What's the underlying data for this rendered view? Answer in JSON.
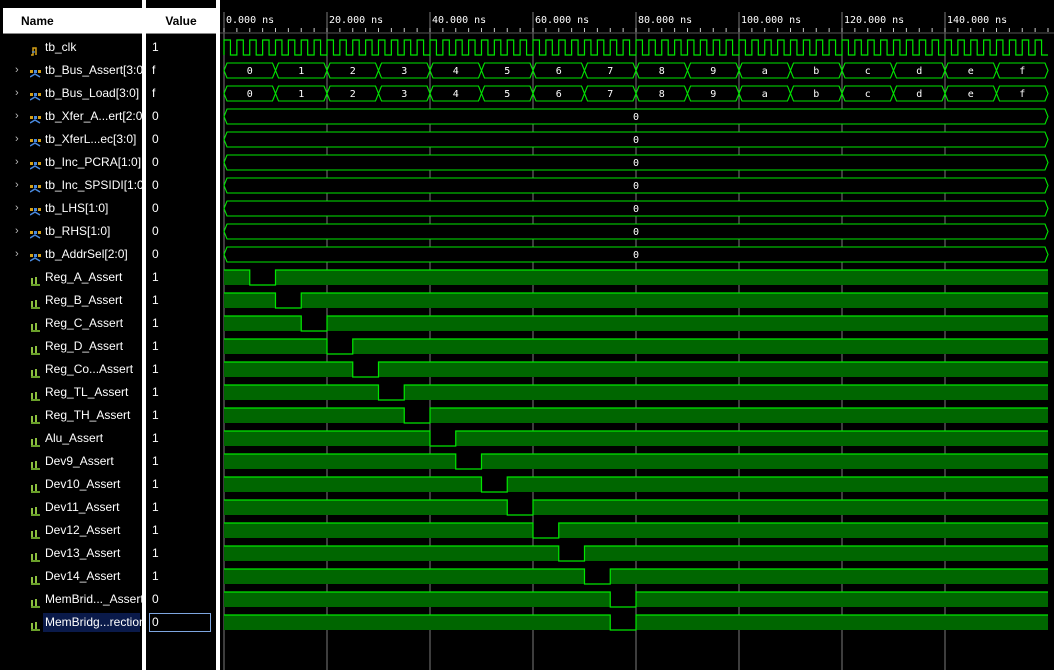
{
  "headers": {
    "name": "Name",
    "value": "Value"
  },
  "time_axis": {
    "labels": [
      "0.000 ns",
      "20.000 ns",
      "40.000 ns",
      "60.000 ns",
      "80.000 ns",
      "100.000 ns",
      "120.000 ns",
      "140.000 ns"
    ],
    "end_ns": 160,
    "clock_period_ns": 2.5
  },
  "colors": {
    "wave": "#00e600",
    "fill": "#006600",
    "bus_bg": "#000000",
    "grid": "#7a7a7a",
    "text": "#ffffff"
  },
  "signals": [
    {
      "name": "tb_clk",
      "value": "1",
      "kind": "clock",
      "expandable": false,
      "icon": "clock-signal-icon"
    },
    {
      "name": "tb_Bus_Assert[3:0]",
      "value": "f",
      "kind": "bus",
      "expandable": true,
      "icon": "bus-signal-icon",
      "segments": [
        "0",
        "1",
        "2",
        "3",
        "4",
        "5",
        "6",
        "7",
        "8",
        "9",
        "a",
        "b",
        "c",
        "d",
        "e",
        "f"
      ]
    },
    {
      "name": "tb_Bus_Load[3:0]",
      "value": "f",
      "kind": "bus",
      "expandable": true,
      "icon": "bus-signal-icon",
      "segments": [
        "0",
        "1",
        "2",
        "3",
        "4",
        "5",
        "6",
        "7",
        "8",
        "9",
        "a",
        "b",
        "c",
        "d",
        "e",
        "f"
      ]
    },
    {
      "name": "tb_Xfer_A...ert[2:0]",
      "value": "0",
      "kind": "bus",
      "expandable": true,
      "icon": "bus-signal-icon",
      "segments": [
        "0"
      ]
    },
    {
      "name": "tb_XferL...ec[3:0]",
      "value": "0",
      "kind": "bus",
      "expandable": true,
      "icon": "bus-signal-icon",
      "segments": [
        "0"
      ]
    },
    {
      "name": "tb_Inc_PCRA[1:0]",
      "value": "0",
      "kind": "bus",
      "expandable": true,
      "icon": "bus-signal-icon",
      "segments": [
        "0"
      ]
    },
    {
      "name": "tb_Inc_SPSIDI[1:0]",
      "value": "0",
      "kind": "bus",
      "expandable": true,
      "icon": "bus-signal-icon",
      "segments": [
        "0"
      ]
    },
    {
      "name": "tb_LHS[1:0]",
      "value": "0",
      "kind": "bus",
      "expandable": true,
      "icon": "bus-signal-icon",
      "segments": [
        "0"
      ]
    },
    {
      "name": "tb_RHS[1:0]",
      "value": "0",
      "kind": "bus",
      "expandable": true,
      "icon": "bus-signal-icon",
      "segments": [
        "0"
      ]
    },
    {
      "name": "tb_AddrSel[2:0]",
      "value": "0",
      "kind": "bus",
      "expandable": true,
      "icon": "bus-signal-icon",
      "segments": [
        "0"
      ]
    },
    {
      "name": "Reg_A_Assert",
      "value": "1",
      "kind": "bit",
      "icon": "bit-signal-icon",
      "low_ns": [
        5,
        10
      ]
    },
    {
      "name": "Reg_B_Assert",
      "value": "1",
      "kind": "bit",
      "icon": "bit-signal-icon",
      "low_ns": [
        10,
        15
      ]
    },
    {
      "name": "Reg_C_Assert",
      "value": "1",
      "kind": "bit",
      "icon": "bit-signal-icon",
      "low_ns": [
        15,
        20
      ]
    },
    {
      "name": "Reg_D_Assert",
      "value": "1",
      "kind": "bit",
      "icon": "bit-signal-icon",
      "low_ns": [
        20,
        25
      ]
    },
    {
      "name": "Reg_Co...Assert",
      "value": "1",
      "kind": "bit",
      "icon": "bit-signal-icon",
      "low_ns": [
        25,
        30
      ]
    },
    {
      "name": "Reg_TL_Assert",
      "value": "1",
      "kind": "bit",
      "icon": "bit-signal-icon",
      "low_ns": [
        30,
        35
      ]
    },
    {
      "name": "Reg_TH_Assert",
      "value": "1",
      "kind": "bit",
      "icon": "bit-signal-icon",
      "low_ns": [
        35,
        40
      ]
    },
    {
      "name": "Alu_Assert",
      "value": "1",
      "kind": "bit",
      "icon": "bit-signal-icon",
      "low_ns": [
        40,
        45
      ]
    },
    {
      "name": "Dev9_Assert",
      "value": "1",
      "kind": "bit",
      "icon": "bit-signal-icon",
      "low_ns": [
        45,
        50
      ]
    },
    {
      "name": "Dev10_Assert",
      "value": "1",
      "kind": "bit",
      "icon": "bit-signal-icon",
      "low_ns": [
        50,
        55
      ]
    },
    {
      "name": "Dev11_Assert",
      "value": "1",
      "kind": "bit",
      "icon": "bit-signal-icon",
      "low_ns": [
        55,
        60
      ]
    },
    {
      "name": "Dev12_Assert",
      "value": "1",
      "kind": "bit",
      "icon": "bit-signal-icon",
      "low_ns": [
        60,
        65
      ]
    },
    {
      "name": "Dev13_Assert",
      "value": "1",
      "kind": "bit",
      "icon": "bit-signal-icon",
      "low_ns": [
        65,
        70
      ]
    },
    {
      "name": "Dev14_Assert",
      "value": "1",
      "kind": "bit",
      "icon": "bit-signal-icon",
      "low_ns": [
        70,
        75
      ]
    },
    {
      "name": "MemBrid..._Assert",
      "value": "0",
      "kind": "bit",
      "icon": "bit-signal-icon",
      "low_ns": [
        75,
        80
      ]
    },
    {
      "name": "MemBridg...rection",
      "value": "0",
      "kind": "bit",
      "icon": "bit-signal-icon",
      "low_ns": [
        75,
        80
      ],
      "selected": true
    }
  ]
}
